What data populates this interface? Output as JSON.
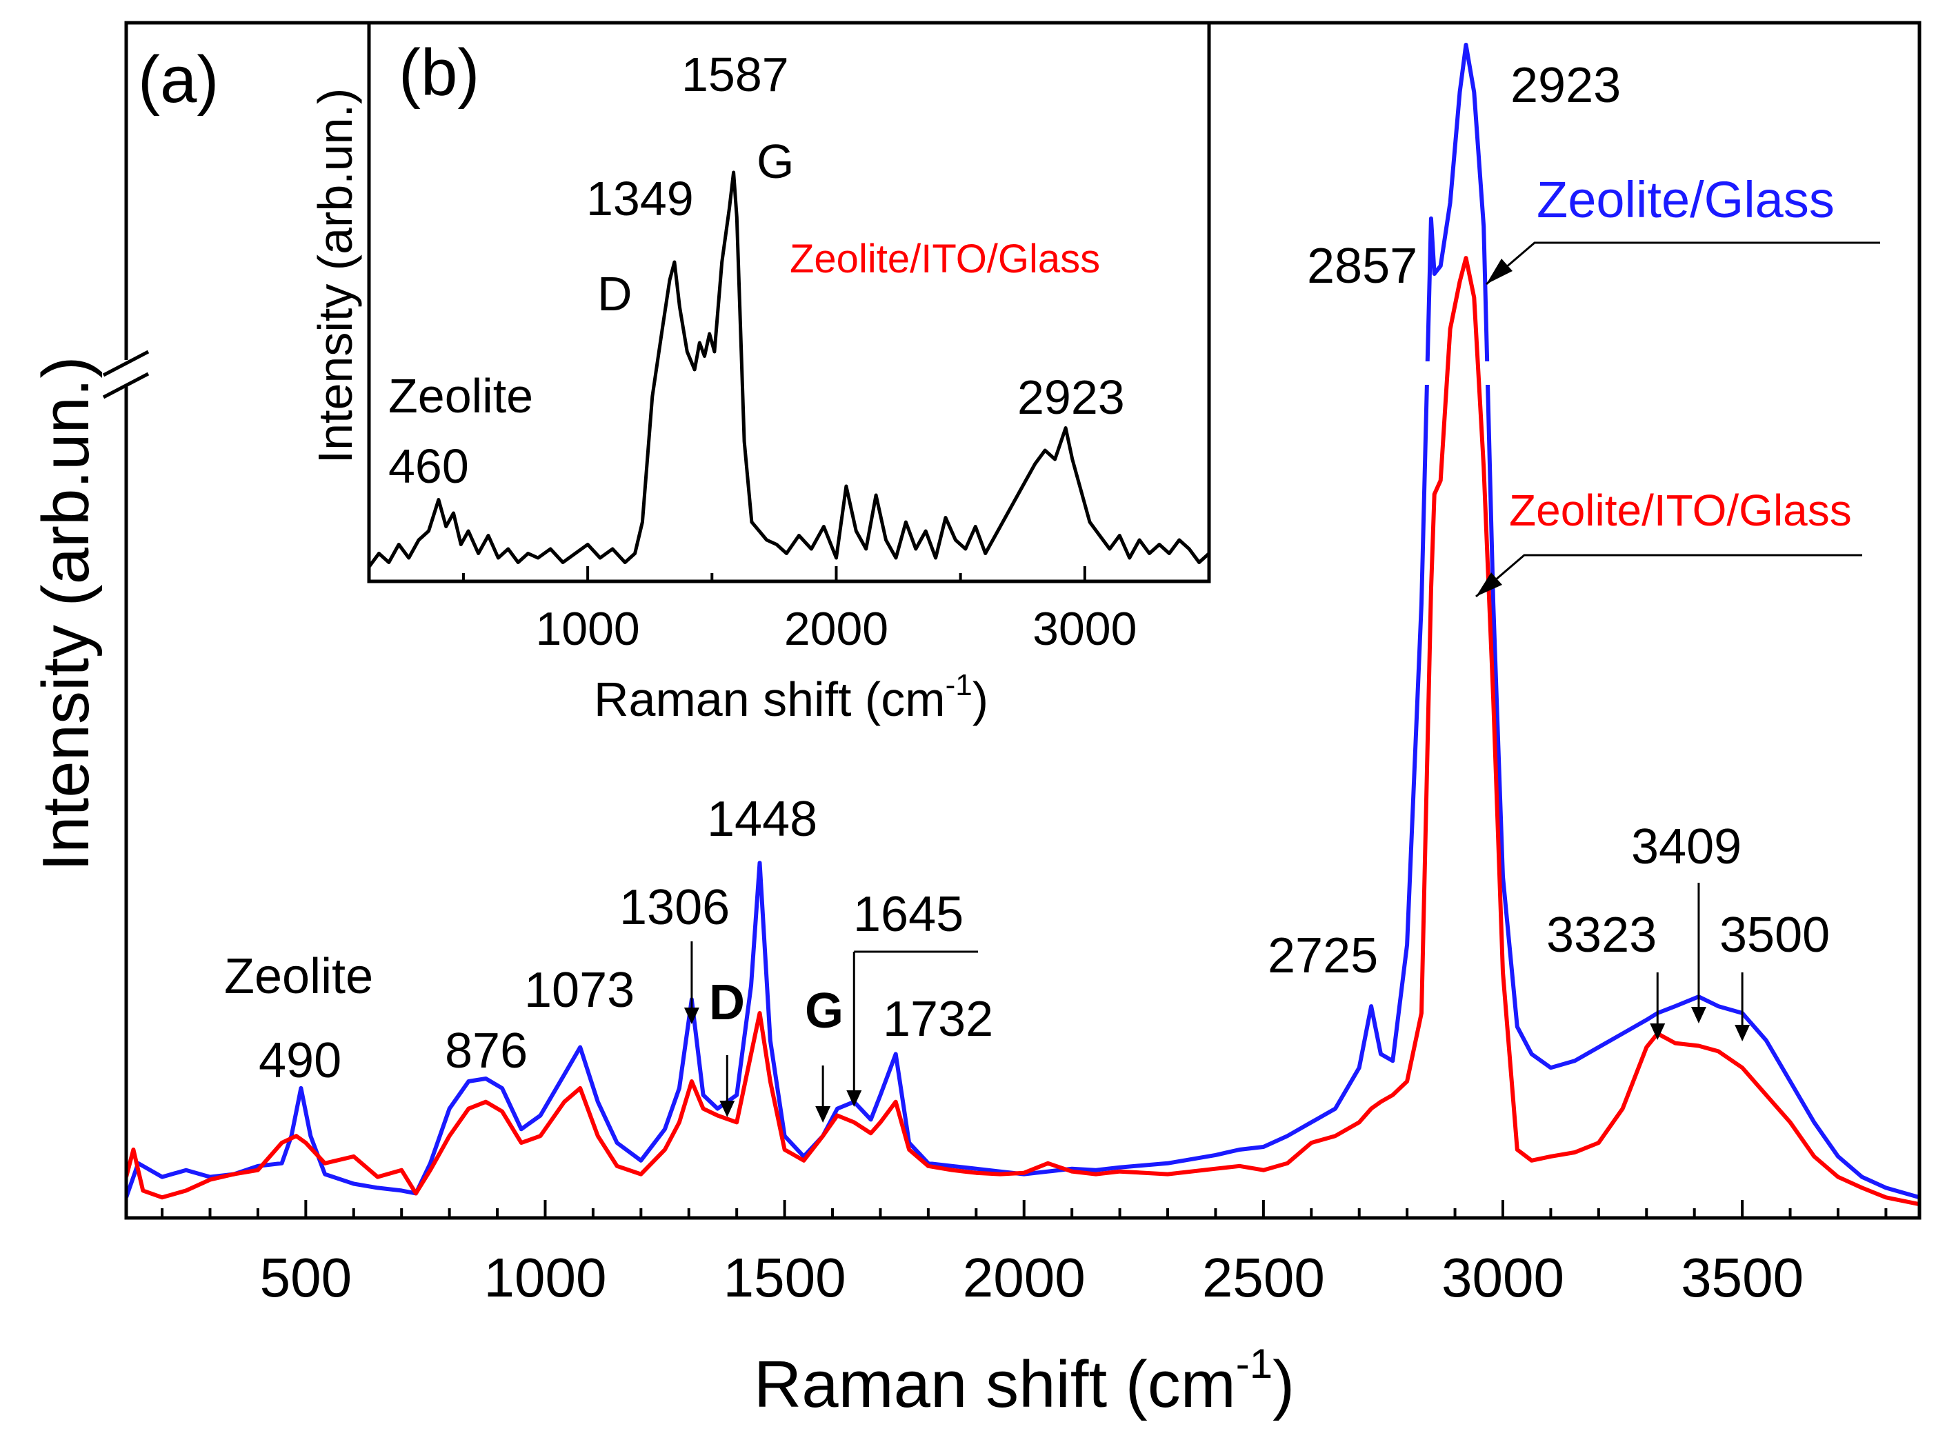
{
  "chart_data": [
    {
      "type": "line",
      "panel_label": "(a)",
      "title": "",
      "xlabel": "Raman shift (cm",
      "xlabel_sup": "-1",
      "xlabel_close": ")",
      "ylabel": "Intensity (arb.un.)",
      "xlim": [
        125,
        3870
      ],
      "ylim": [
        0,
        100
      ],
      "y_axis_break": true,
      "x_ticks": [
        500,
        1000,
        1500,
        2000,
        2500,
        3000,
        3500
      ],
      "x_tick_labels": [
        "500",
        "1000",
        "1500",
        "2000",
        "2500",
        "3000",
        "3500"
      ],
      "legend": [
        {
          "label": "Zeolite/Glass",
          "color": "#1a1aff",
          "placement": "right, above blue 2923 peak"
        },
        {
          "label": "Zeolite/ITO/Glass",
          "color": "#ff0000",
          "placement": "right, above red 2923 peak"
        }
      ],
      "series": [
        {
          "name": "Zeolite/Glass",
          "color": "#1a1aff",
          "x": [
            125,
            150,
            200,
            250,
            300,
            350,
            400,
            450,
            470,
            490,
            510,
            540,
            600,
            650,
            700,
            730,
            760,
            800,
            840,
            876,
            910,
            950,
            990,
            1040,
            1073,
            1110,
            1150,
            1200,
            1250,
            1280,
            1306,
            1330,
            1360,
            1400,
            1430,
            1448,
            1470,
            1500,
            1540,
            1580,
            1610,
            1645,
            1680,
            1700,
            1732,
            1760,
            1800,
            1850,
            1900,
            1950,
            2000,
            2050,
            2100,
            2150,
            2200,
            2300,
            2400,
            2450,
            2500,
            2550,
            2600,
            2650,
            2700,
            2725,
            2745,
            2770,
            2800,
            2830,
            2850,
            2857,
            2870,
            2890,
            2910,
            2923,
            2940,
            2960,
            2980,
            3000,
            3030,
            3060,
            3100,
            3150,
            3200,
            3250,
            3300,
            3323,
            3360,
            3409,
            3450,
            3500,
            3550,
            3600,
            3650,
            3700,
            3750,
            3800,
            3870
          ],
          "values": [
            1.5,
            4,
            3,
            3.5,
            3,
            3.2,
            3.8,
            4,
            6,
            9.5,
            6,
            3.2,
            2.5,
            2.2,
            2,
            1.8,
            4,
            8,
            10,
            10.2,
            9.5,
            6.5,
            7.5,
            10.5,
            12.5,
            8.5,
            5.5,
            4.2,
            6.5,
            9.5,
            16,
            9,
            8,
            9,
            17,
            26,
            13,
            6,
            4.5,
            6,
            8,
            8.5,
            7.2,
            9,
            12,
            5.5,
            4,
            3.8,
            3.6,
            3.4,
            3.2,
            3.4,
            3.6,
            3.5,
            3.7,
            4,
            4.6,
            5,
            5.2,
            6,
            7,
            8,
            11,
            15.5,
            12,
            11.5,
            20,
            45,
            76,
            69,
            70,
            78,
            92,
            98,
            92,
            75,
            45,
            25,
            14,
            12,
            11,
            11.5,
            12.5,
            13.5,
            14.5,
            15,
            15.5,
            16.2,
            15.5,
            15,
            13,
            10,
            7,
            4.5,
            3,
            2.2,
            1.5
          ]
        },
        {
          "name": "Zeolite/ITO/Glass",
          "color": "#ff0000",
          "x": [
            125,
            140,
            160,
            200,
            250,
            300,
            350,
            400,
            450,
            480,
            500,
            540,
            600,
            650,
            700,
            730,
            760,
            800,
            840,
            876,
            910,
            950,
            990,
            1040,
            1073,
            1110,
            1150,
            1200,
            1250,
            1280,
            1306,
            1330,
            1360,
            1400,
            1430,
            1448,
            1470,
            1500,
            1540,
            1580,
            1610,
            1645,
            1680,
            1700,
            1732,
            1760,
            1800,
            1850,
            1900,
            1950,
            2000,
            2050,
            2100,
            2150,
            2200,
            2300,
            2400,
            2450,
            2500,
            2550,
            2600,
            2650,
            2700,
            2725,
            2745,
            2770,
            2800,
            2830,
            2850,
            2857,
            2870,
            2890,
            2910,
            2923,
            2940,
            2960,
            2980,
            3000,
            3030,
            3060,
            3100,
            3150,
            3200,
            3250,
            3300,
            3323,
            3360,
            3409,
            3450,
            3500,
            3550,
            3600,
            3650,
            3700,
            3750,
            3800,
            3870
          ],
          "values": [
            3,
            5,
            2,
            1.5,
            2,
            2.8,
            3.2,
            3.5,
            5.5,
            6,
            5.5,
            4,
            4.5,
            3,
            3.5,
            1.8,
            3.5,
            6,
            8,
            8.5,
            7.8,
            5.5,
            6,
            8.5,
            9.5,
            6,
            3.8,
            3.2,
            5,
            7,
            10,
            8,
            7.5,
            7,
            12,
            15,
            10,
            5,
            4.2,
            6,
            7.5,
            7,
            6.2,
            7,
            8.5,
            5,
            3.8,
            3.5,
            3.3,
            3.2,
            3.3,
            4,
            3.4,
            3.2,
            3.4,
            3.2,
            3.6,
            3.8,
            3.5,
            4,
            5.5,
            6,
            7,
            8,
            8.5,
            9,
            10,
            15,
            46,
            53,
            54,
            62,
            68,
            71,
            66,
            55,
            38,
            18,
            5,
            4.2,
            4.5,
            4.8,
            5.5,
            8,
            12.5,
            13.5,
            12.8,
            12.6,
            12.2,
            11,
            9,
            7,
            4.5,
            3,
            2.2,
            1.5,
            1
          ]
        }
      ],
      "annotations": {
        "zeolite": "Zeolite",
        "p490": "490",
        "p876": "876",
        "p1073": "1073",
        "p1306": "1306",
        "p1448": "1448",
        "p1645": "1645",
        "p1732": "1732",
        "band_d": "D",
        "band_g": "G",
        "p2725": "2725",
        "p2857": "2857",
        "p2923": "2923",
        "p3323": "3323",
        "p3409": "3409",
        "p3500": "3500"
      },
      "marker_arrows_at": [
        1306,
        1380,
        1580,
        1645,
        3323,
        3409,
        3500
      ]
    },
    {
      "type": "line",
      "panel_label": "(b)",
      "title": "",
      "xlabel": "Raman shift (cm",
      "xlabel_sup": "-1",
      "xlabel_close": ")",
      "ylabel": "Intensity (arb.un.)",
      "xlim": [
        120,
        3500
      ],
      "ylim": [
        0,
        100
      ],
      "x_ticks": [
        1000,
        2000,
        3000
      ],
      "x_tick_labels": [
        "1000",
        "2000",
        "3000"
      ],
      "legend": [
        {
          "label": "Zeolite/ITO/Glass",
          "color": "#ff0000",
          "placement": "right"
        }
      ],
      "series": [
        {
          "name": "Zeolite/ITO/Glass",
          "color": "#000000",
          "x": [
            120,
            160,
            200,
            240,
            280,
            320,
            360,
            400,
            430,
            460,
            490,
            520,
            560,
            600,
            640,
            680,
            720,
            760,
            800,
            850,
            900,
            950,
            1000,
            1050,
            1100,
            1150,
            1190,
            1220,
            1260,
            1300,
            1330,
            1349,
            1370,
            1400,
            1430,
            1450,
            1470,
            1490,
            1510,
            1540,
            1570,
            1587,
            1600,
            1630,
            1660,
            1690,
            1720,
            1760,
            1800,
            1850,
            1900,
            1950,
            2000,
            2040,
            2080,
            2120,
            2160,
            2200,
            2240,
            2280,
            2320,
            2360,
            2400,
            2440,
            2480,
            2520,
            2560,
            2600,
            2640,
            2680,
            2720,
            2760,
            2800,
            2840,
            2880,
            2923,
            2950,
            2980,
            3020,
            3060,
            3100,
            3140,
            3180,
            3220,
            3260,
            3300,
            3340,
            3380,
            3420,
            3460,
            3500
          ],
          "values": [
            2,
            5,
            3,
            7,
            4,
            8,
            10,
            17,
            11,
            14,
            7,
            10,
            5,
            9,
            4,
            6,
            3,
            5,
            4,
            6,
            3,
            5,
            7,
            4,
            6,
            3,
            5,
            12,
            40,
            55,
            66,
            70,
            60,
            50,
            46,
            52,
            49,
            54,
            50,
            70,
            82,
            90,
            80,
            30,
            12,
            10,
            8,
            7,
            5,
            9,
            6,
            11,
            4,
            20,
            10,
            6,
            18,
            8,
            4,
            12,
            6,
            10,
            4,
            13,
            8,
            6,
            11,
            5,
            9,
            13,
            17,
            21,
            25,
            28,
            26,
            33,
            26,
            20,
            12,
            9,
            6,
            9,
            4,
            8,
            5,
            7,
            5,
            8,
            6,
            3,
            5
          ]
        }
      ],
      "annotations": {
        "zeolite": "Zeolite",
        "p460": "460",
        "p1349": "1349",
        "p1587": "1587",
        "band_d": "D",
        "band_g": "G",
        "p2923": "2923"
      }
    }
  ]
}
